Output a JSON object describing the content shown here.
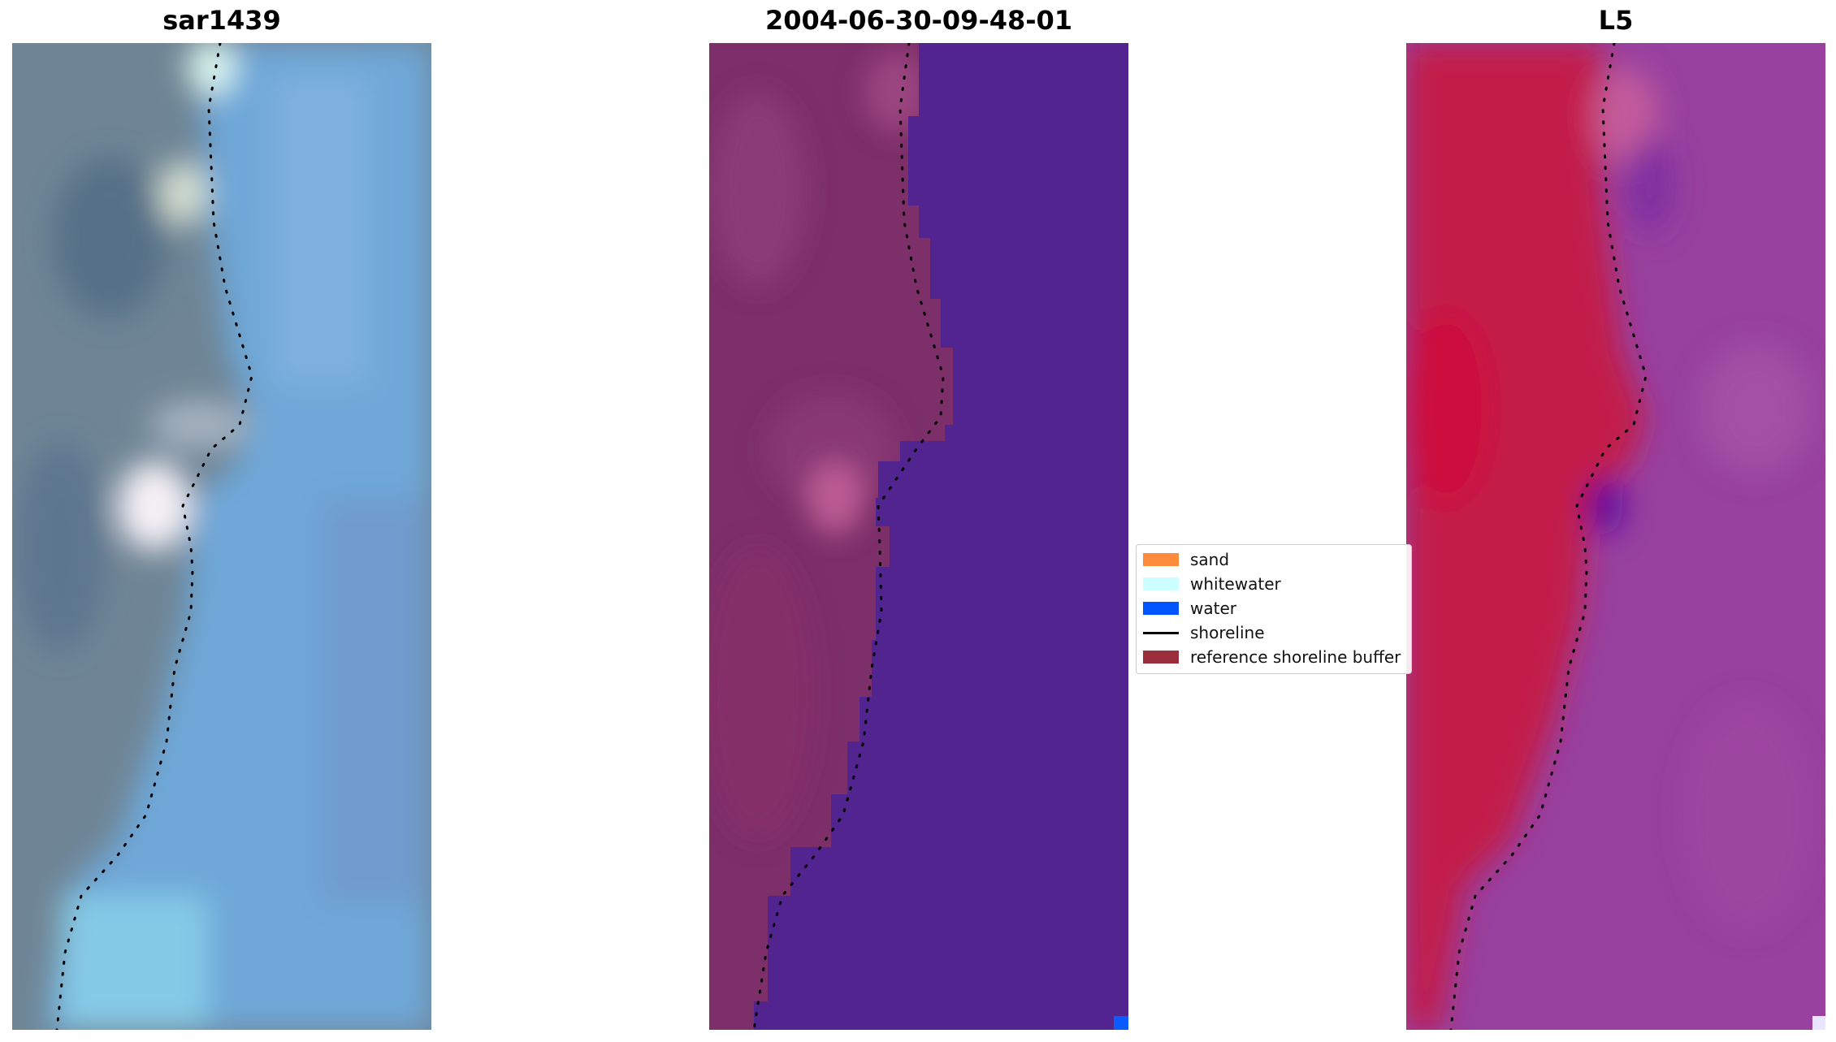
{
  "titles": {
    "left": "sar1439",
    "middle": "2004-06-30-09-48-01",
    "right": "L5"
  },
  "legend": {
    "items": [
      {
        "label": "sand",
        "color": "#ff8c3c",
        "kind": "patch"
      },
      {
        "label": "whitewater",
        "color": "#ccffff",
        "kind": "patch"
      },
      {
        "label": "water",
        "color": "#0055ff",
        "kind": "patch"
      },
      {
        "label": "shoreline",
        "color": "#000000",
        "kind": "line"
      },
      {
        "label": "reference shoreline buffer",
        "color": "#9b2e3c",
        "kind": "patch"
      }
    ]
  },
  "colors": {
    "rgb_land": "#6f8595",
    "rgb_water": "#6ea7d8",
    "class_land": "#7d2f6a",
    "class_water": "#52248f",
    "mndwi_land": "#c31a48",
    "mndwi_water": "#98419f"
  }
}
